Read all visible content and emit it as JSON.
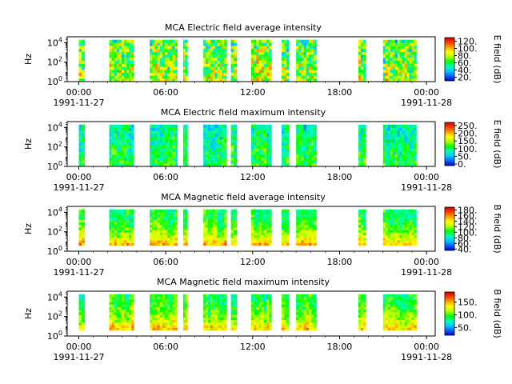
{
  "figure": {
    "colormap": [
      "#0000c8",
      "#0064ff",
      "#00c8ff",
      "#00ffb4",
      "#00ff00",
      "#b4ff00",
      "#ffff00",
      "#ffa000",
      "#ff3c00",
      "#c80000"
    ],
    "panel_background": "#ffffff",
    "data_gaps_color": "#ffffff"
  },
  "chart_data": [
    {
      "type": "heatmap",
      "title": "MCA  Electric field average intensity",
      "ylabel": "Hz",
      "y_ticks": [
        {
          "base": "10",
          "exp": "0"
        },
        {
          "base": "10",
          "exp": "2"
        },
        {
          "base": "10",
          "exp": "4"
        }
      ],
      "y_scale": "log",
      "ylim_exp": [
        0,
        4.6
      ],
      "x_ticks": [
        "00:00",
        "06:00",
        "12:00",
        "18:00",
        "00:00"
      ],
      "x_tick_dates": [
        "1991-11-27",
        "1991-11-28"
      ],
      "xlim_hours": [
        -0.8,
        24.6
      ],
      "colorbar_label": "E field (dB)",
      "colorbar_ticks": [
        "20.",
        "40.",
        "60.",
        "80.",
        "100.",
        "120."
      ],
      "colorbar_range": [
        10,
        130
      ],
      "base_level": 0.45,
      "noise": 0.25,
      "intervals_hours": [
        [
          0.0,
          0.4
        ],
        [
          2.1,
          3.8
        ],
        [
          4.9,
          6.8
        ],
        [
          7.2,
          7.5
        ],
        [
          8.6,
          10.2
        ],
        [
          10.5,
          10.9
        ],
        [
          11.9,
          13.3
        ],
        [
          14.0,
          14.5
        ],
        [
          15.0,
          16.4
        ],
        [
          19.3,
          19.8
        ],
        [
          21.0,
          23.3
        ]
      ]
    },
    {
      "type": "heatmap",
      "title": "MCA  Electric field maximum intensity",
      "ylabel": "Hz",
      "y_ticks": [
        {
          "base": "10",
          "exp": "0"
        },
        {
          "base": "10",
          "exp": "2"
        },
        {
          "base": "10",
          "exp": "4"
        }
      ],
      "y_scale": "log",
      "ylim_exp": [
        0,
        4.6
      ],
      "x_ticks": [
        "00:00",
        "06:00",
        "12:00",
        "18:00",
        "00:00"
      ],
      "x_tick_dates": [
        "1991-11-27",
        "1991-11-28"
      ],
      "xlim_hours": [
        -0.8,
        24.6
      ],
      "colorbar_label": "E field (dB)",
      "colorbar_ticks": [
        "0.",
        "50.",
        "100.",
        "150.",
        "200.",
        "250."
      ],
      "colorbar_range": [
        -10,
        270
      ],
      "base_level": 0.33,
      "noise": 0.12,
      "intervals_hours": [
        [
          0.0,
          0.4
        ],
        [
          2.1,
          3.8
        ],
        [
          4.9,
          6.8
        ],
        [
          7.2,
          7.5
        ],
        [
          8.6,
          10.2
        ],
        [
          10.5,
          10.9
        ],
        [
          11.9,
          13.3
        ],
        [
          14.0,
          14.5
        ],
        [
          15.0,
          16.4
        ],
        [
          19.3,
          19.8
        ],
        [
          21.0,
          23.3
        ]
      ]
    },
    {
      "type": "heatmap",
      "title": "MCA  Magnetic field average intensity",
      "ylabel": "Hz",
      "y_ticks": [
        {
          "base": "10",
          "exp": "0"
        },
        {
          "base": "10",
          "exp": "2"
        },
        {
          "base": "10",
          "exp": "4"
        }
      ],
      "y_scale": "log",
      "ylim_exp": [
        0,
        4.6
      ],
      "x_ticks": [
        "00:00",
        "06:00",
        "12:00",
        "18:00",
        "00:00"
      ],
      "x_tick_dates": [
        "1991-11-27",
        "1991-11-28"
      ],
      "xlim_hours": [
        -0.8,
        24.6
      ],
      "colorbar_label": "B field (dB)",
      "colorbar_ticks": [
        "40.",
        "60.",
        "80.",
        "100.",
        "120.",
        "140.",
        "160.",
        "180."
      ],
      "colorbar_range": [
        35,
        190
      ],
      "base_level": 0.38,
      "noise": 0.1,
      "low_freq_boost": 0.35,
      "freq_floor_exp": 0.6,
      "intervals_hours": [
        [
          0.0,
          0.4
        ],
        [
          2.1,
          3.8
        ],
        [
          4.9,
          6.8
        ],
        [
          7.2,
          7.5
        ],
        [
          8.6,
          10.2
        ],
        [
          10.5,
          10.9
        ],
        [
          11.9,
          13.3
        ],
        [
          14.0,
          14.5
        ],
        [
          15.0,
          16.4
        ],
        [
          19.3,
          19.8
        ],
        [
          21.0,
          23.3
        ]
      ]
    },
    {
      "type": "heatmap",
      "title": "MCA  Magnetic field maximum intensity",
      "ylabel": "Hz",
      "y_ticks": [
        {
          "base": "10",
          "exp": "0"
        },
        {
          "base": "10",
          "exp": "2"
        },
        {
          "base": "10",
          "exp": "4"
        }
      ],
      "y_scale": "log",
      "ylim_exp": [
        0,
        4.6
      ],
      "x_ticks": [
        "00:00",
        "06:00",
        "12:00",
        "18:00",
        "00:00"
      ],
      "x_tick_dates": [
        "1991-11-27",
        "1991-11-28"
      ],
      "xlim_hours": [
        -0.8,
        24.6
      ],
      "colorbar_label": "B field (dB)",
      "colorbar_ticks": [
        "50.",
        "100.",
        "150."
      ],
      "colorbar_range": [
        20,
        190
      ],
      "base_level": 0.42,
      "noise": 0.1,
      "low_freq_boost": 0.3,
      "freq_floor_exp": 0.6,
      "intervals_hours": [
        [
          0.0,
          0.4
        ],
        [
          2.1,
          3.8
        ],
        [
          4.9,
          6.8
        ],
        [
          7.2,
          7.5
        ],
        [
          8.6,
          10.2
        ],
        [
          10.5,
          10.9
        ],
        [
          11.9,
          13.3
        ],
        [
          14.0,
          14.5
        ],
        [
          15.0,
          16.4
        ],
        [
          19.3,
          19.8
        ],
        [
          21.0,
          23.3
        ]
      ]
    }
  ]
}
